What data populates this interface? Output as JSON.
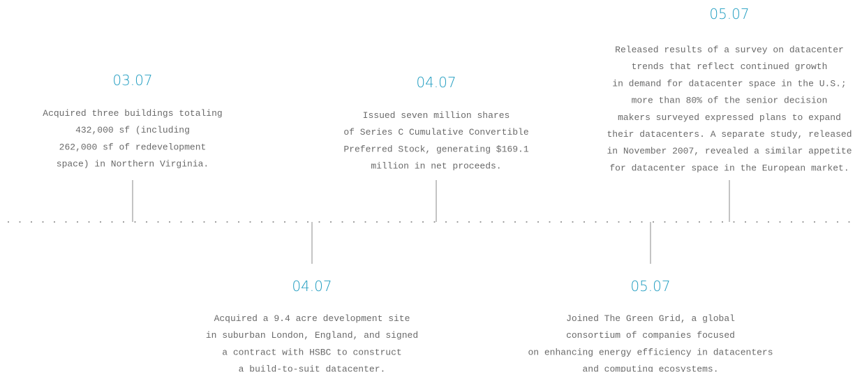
{
  "events": [
    {
      "date": "03.07",
      "lines": [
        "Acquired three buildings totaling",
        "432,000 sf (including",
        "262,000 sf of redevelopment",
        "space) in Northern Virginia."
      ]
    },
    {
      "date": "04.07",
      "lines": [
        "Acquired a 9.4 acre development site",
        "in suburban London, England, and signed",
        "a contract with HSBC to construct",
        "a build-to-suit datacenter."
      ]
    },
    {
      "date": "04.07",
      "lines": [
        "Issued seven million shares",
        "of Series C Cumulative Convertible",
        "Preferred Stock, generating $169.1",
        "million in net proceeds."
      ]
    },
    {
      "date": "05.07",
      "lines": [
        "Joined The Green Grid, a global",
        "consortium of companies focused",
        "on enhancing energy efficiency in datacenters",
        "and computing ecosystems."
      ]
    },
    {
      "date": "05.07",
      "lines": [
        "Released results of a survey on datacenter",
        "trends that reflect continued growth",
        "in demand for datacenter space in the U.S.;",
        "more than 80% of the senior decision",
        "makers surveyed expressed plans to expand",
        "their datacenters. A separate study, released",
        "in November 2007, revealed a similar appetite",
        "for datacenter space in the European market."
      ]
    }
  ]
}
